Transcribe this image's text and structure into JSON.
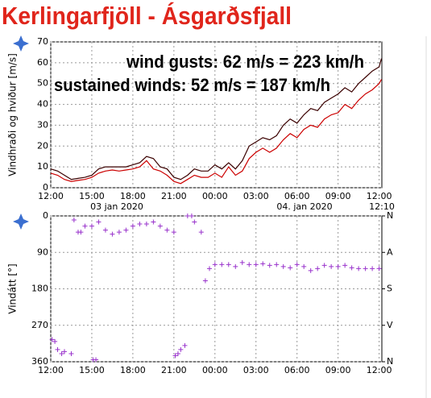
{
  "chart_data": [
    {
      "type": "line",
      "title": "Kerlingarfjöll - Ásgarðsfjall",
      "ylabel": "Vindhraði og hviður [m/s]",
      "annotations": [
        "wind gusts: 62 m/s = 223 km/h",
        "sustained winds: 52 m/s = 187 km/h"
      ],
      "date_labels": [
        "03 jan 2020",
        "04. jan 2020",
        "12:10"
      ],
      "x": [
        0,
        0.5,
        1,
        1.5,
        2,
        2.5,
        3,
        3.5,
        4,
        4.5,
        5,
        5.5,
        6,
        6.5,
        7,
        7.5,
        8,
        8.5,
        9,
        9.5,
        10,
        10.5,
        11,
        11.5,
        12,
        12.5,
        13,
        13.5,
        14,
        14.5,
        15,
        15.5,
        16,
        16.5,
        17,
        17.5,
        18,
        18.5,
        19,
        19.5,
        20,
        20.5,
        21,
        21.5,
        22,
        22.5,
        23,
        23.5,
        24,
        24.17
      ],
      "series": [
        {
          "name": "wind gusts",
          "color": "#3a0000",
          "values": [
            9,
            8,
            6,
            4,
            4.5,
            5,
            6,
            9,
            10,
            10,
            10,
            10,
            11,
            12,
            15,
            14,
            10,
            9,
            5,
            4,
            6,
            9,
            8,
            8,
            11,
            9,
            12,
            9,
            13,
            20,
            22,
            24,
            23,
            25,
            30,
            33,
            31,
            35,
            38,
            37,
            41,
            43,
            45,
            48,
            46,
            50,
            53,
            56,
            58,
            62
          ]
        },
        {
          "name": "sustained winds",
          "color": "#cc0000",
          "values": [
            7,
            6,
            4,
            3,
            3.5,
            4,
            5,
            7,
            8,
            8.5,
            8,
            8.5,
            9,
            10,
            13,
            9,
            8,
            6,
            3,
            2,
            4,
            6,
            5,
            5,
            7,
            5,
            10,
            6,
            8,
            14,
            17,
            19,
            17,
            19,
            23,
            26,
            24,
            28,
            30,
            29,
            33,
            35,
            36,
            40,
            38,
            42,
            45,
            47,
            50,
            52
          ]
        }
      ],
      "xlim": [
        0,
        24.2
      ],
      "xticks": [
        {
          "value": 0,
          "label": "12:00"
        },
        {
          "value": 3,
          "label": "15:00"
        },
        {
          "value": 6,
          "label": "18:00"
        },
        {
          "value": 9,
          "label": "21:00"
        },
        {
          "value": 12,
          "label": "00:00"
        },
        {
          "value": 15,
          "label": "03:00"
        },
        {
          "value": 18,
          "label": "06:00"
        },
        {
          "value": 21,
          "label": "09:00"
        },
        {
          "value": 24,
          "label": "12:00"
        }
      ],
      "ylim": [
        0,
        70
      ],
      "yticks": [
        0,
        10,
        20,
        30,
        40,
        50,
        60,
        70
      ],
      "grid": true
    },
    {
      "type": "scatter",
      "ylabel": "Vindátt [°]",
      "color": "#9933cc",
      "x": [
        0.1,
        0.3,
        0.5,
        0.8,
        1.0,
        1.5,
        1.7,
        2.0,
        2.2,
        2.5,
        3.0,
        3.1,
        3.3,
        3.5,
        4.0,
        4.5,
        5.0,
        5.5,
        6.0,
        6.5,
        7.0,
        7.5,
        8.0,
        8.5,
        9.0,
        9.1,
        9.3,
        9.5,
        9.8,
        10.0,
        10.3,
        10.5,
        11.0,
        11.3,
        11.6,
        12.0,
        12.5,
        13.0,
        13.5,
        14.0,
        14.5,
        15.0,
        15.5,
        16.0,
        16.5,
        17.0,
        17.5,
        18.0,
        18.5,
        19.0,
        19.5,
        20.0,
        20.5,
        21.0,
        21.5,
        22.0,
        22.5,
        23.0,
        23.5,
        24.0
      ],
      "values": [
        305,
        310,
        330,
        340,
        335,
        340,
        10,
        40,
        40,
        25,
        25,
        355,
        355,
        15,
        35,
        45,
        40,
        35,
        25,
        20,
        20,
        15,
        25,
        35,
        40,
        345,
        340,
        330,
        320,
        0,
        0,
        15,
        40,
        160,
        130,
        120,
        120,
        120,
        125,
        115,
        120,
        120,
        118,
        122,
        120,
        125,
        128,
        120,
        125,
        135,
        130,
        122,
        125,
        125,
        122,
        128,
        130,
        130,
        130,
        130
      ],
      "xlim": [
        0,
        24.2
      ],
      "xticks": [
        {
          "value": 0,
          "label": "12:00"
        },
        {
          "value": 3,
          "label": "15:00"
        },
        {
          "value": 6,
          "label": "18:00"
        },
        {
          "value": 9,
          "label": "21:00"
        },
        {
          "value": 12,
          "label": "00:00"
        },
        {
          "value": 15,
          "label": "03:00"
        },
        {
          "value": 18,
          "label": "06:00"
        },
        {
          "value": 21,
          "label": "09:00"
        },
        {
          "value": 24,
          "label": "12:00"
        }
      ],
      "ylim": [
        360,
        0
      ],
      "yticks": [
        0,
        90,
        180,
        270,
        360
      ],
      "y2lim": [
        360,
        0
      ],
      "y2ticks": [
        {
          "value": 0,
          "label": "N"
        },
        {
          "value": 90,
          "label": "A"
        },
        {
          "value": 180,
          "label": "S"
        },
        {
          "value": 270,
          "label": "V"
        },
        {
          "value": 360,
          "label": "N"
        }
      ],
      "grid": true
    }
  ]
}
